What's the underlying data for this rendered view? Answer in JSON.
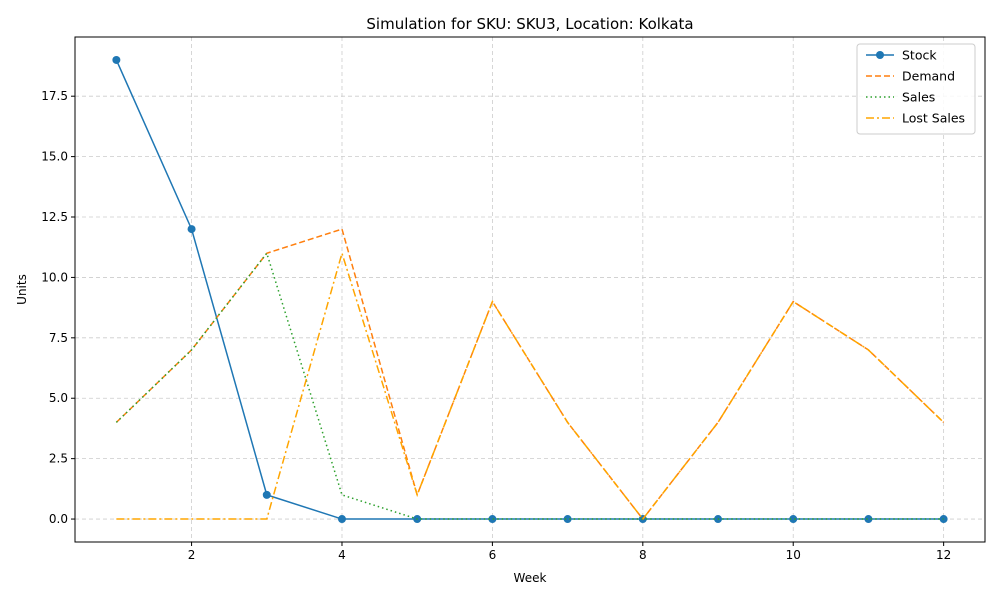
{
  "chart_data": {
    "type": "line",
    "title": "Simulation for SKU: SKU3, Location: Kolkata",
    "xlabel": "Week",
    "ylabel": "Units",
    "x": [
      1,
      2,
      3,
      4,
      5,
      6,
      7,
      8,
      9,
      10,
      11,
      12
    ],
    "xlim": [
      0.45,
      12.55
    ],
    "ylim": [
      -0.95,
      19.95
    ],
    "xticks": [
      2,
      4,
      6,
      8,
      10,
      12
    ],
    "xtick_labels": [
      "2",
      "4",
      "6",
      "8",
      "10",
      "12"
    ],
    "yticks": [
      0,
      2.5,
      5,
      7.5,
      10,
      12.5,
      15,
      17.5
    ],
    "ytick_labels": [
      "0.0",
      "2.5",
      "5.0",
      "7.5",
      "10.0",
      "12.5",
      "15.0",
      "17.5"
    ],
    "grid": true,
    "legend_position": "top-right",
    "series": [
      {
        "name": "Stock",
        "values": [
          19,
          12,
          1,
          0,
          0,
          0,
          0,
          0,
          0,
          0,
          0,
          0
        ],
        "color": "#1f77b4",
        "style": "solid",
        "marker": "circle"
      },
      {
        "name": "Demand",
        "values": [
          4,
          7,
          11,
          12,
          1,
          9,
          4,
          0,
          4,
          9,
          7,
          4
        ],
        "color": "#ff7f0e",
        "style": "dashed",
        "marker": "none"
      },
      {
        "name": "Sales",
        "values": [
          4,
          7,
          11,
          1,
          0,
          0,
          0,
          0,
          0,
          0,
          0,
          0
        ],
        "color": "#2ca02c",
        "style": "dotted",
        "marker": "none"
      },
      {
        "name": "Lost Sales",
        "values": [
          0,
          0,
          0,
          11,
          1,
          9,
          4,
          0,
          4,
          9,
          7,
          4
        ],
        "color": "#ffa500",
        "style": "dashdot",
        "marker": "none"
      }
    ]
  }
}
